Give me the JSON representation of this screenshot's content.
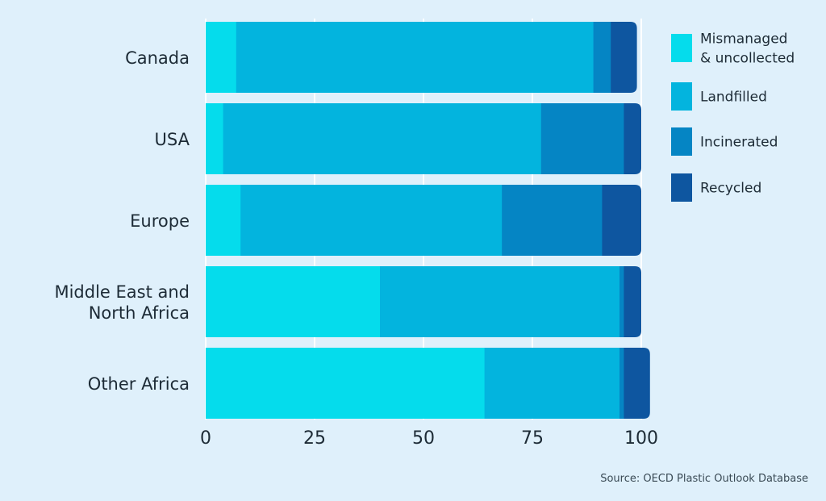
{
  "chart_data": {
    "type": "bar",
    "orientation": "horizontal",
    "stacked": true,
    "title": "",
    "xlabel": "",
    "ylabel": "",
    "xlim": [
      0,
      100
    ],
    "x_ticks": [
      "0",
      "25",
      "50",
      "75",
      "100"
    ],
    "grid": true,
    "legend_position": "top-right",
    "categories": [
      [
        "Canada"
      ],
      [
        "USA"
      ],
      [
        "Europe"
      ],
      [
        "Middle East and",
        "North Africa"
      ],
      [
        "Other Africa"
      ]
    ],
    "series": [
      {
        "name": "Mismanaged & uncollected",
        "legend_lines": [
          "Mismanaged",
          "& uncollected"
        ],
        "color": "#05dcec",
        "values": [
          7,
          4,
          8,
          40,
          64
        ]
      },
      {
        "name": "Landfilled",
        "legend_lines": [
          "Landfilled"
        ],
        "color": "#03b4de",
        "values": [
          82,
          73,
          60,
          55,
          31
        ]
      },
      {
        "name": "Incinerated",
        "legend_lines": [
          "Incinerated"
        ],
        "color": "#0585c4",
        "values": [
          4,
          19,
          23,
          1,
          1
        ]
      },
      {
        "name": "Recycled",
        "legend_lines": [
          "Recycled"
        ],
        "color": "#0e56a0",
        "values": [
          6,
          4,
          9,
          4,
          6
        ]
      }
    ]
  },
  "source": "Source: OECD Plastic Outlook Database",
  "colors": {
    "background": "#dff0fb",
    "gridline": "#ffffff",
    "axis_text": "#1d2b36"
  }
}
